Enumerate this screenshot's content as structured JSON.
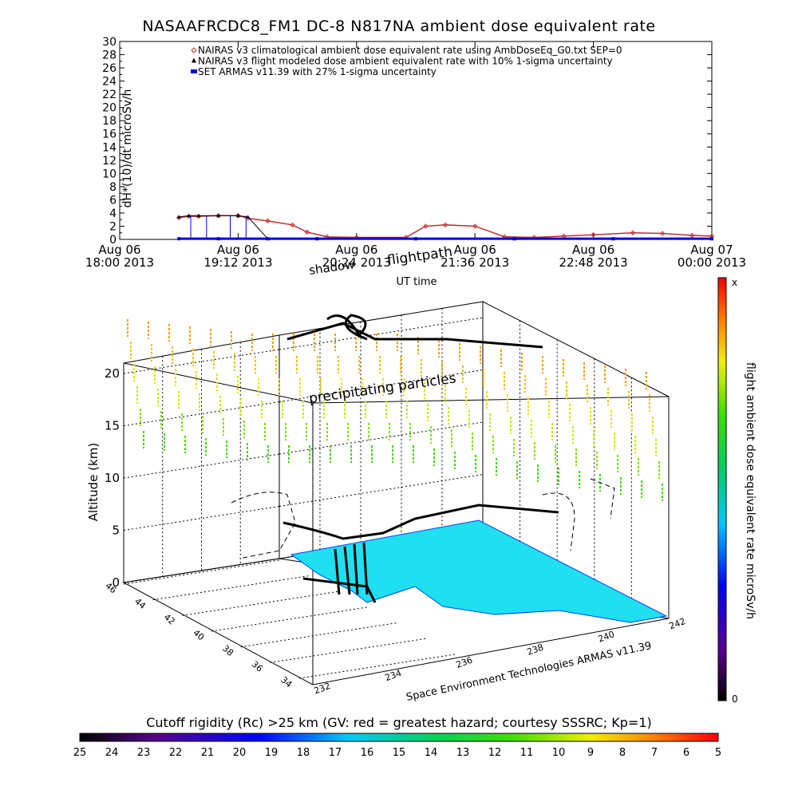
{
  "chart_data": [
    {
      "type": "line",
      "title": "NASAAFRCDC8_FM1 DC-8   N817NA ambient dose equivalent rate",
      "ylabel": "dH*(10)/dt microSv/h",
      "xlabel": "UT time",
      "ylim": [
        0,
        30
      ],
      "yticks": [
        "0",
        "2",
        "4",
        "6",
        "8",
        "10",
        "12",
        "14",
        "16",
        "18",
        "20",
        "22",
        "24",
        "26",
        "28",
        "30"
      ],
      "xticks": [
        {
          "line1": "Aug 06",
          "line2": "18:00 2013"
        },
        {
          "line1": "Aug 06",
          "line2": "19:12 2013"
        },
        {
          "line1": "Aug 06",
          "line2": "20:24 2013"
        },
        {
          "line1": "Aug 06",
          "line2": "21:36 2013"
        },
        {
          "line1": "Aug 06",
          "line2": "22:48 2013"
        },
        {
          "line1": "Aug 07",
          "line2": "00:00 2013"
        }
      ],
      "x_range_hours": [
        0,
        6
      ],
      "legend": [
        {
          "label": "NAIRAS v3 climatological ambient dose equivalent rate using AmbDoseEq_G0.txt SEP=0",
          "color": "#c03030",
          "marker": "diamond"
        },
        {
          "label": "NAIRAS v3 flight modeled dose ambient equivalent rate with 10% 1-sigma uncertainty",
          "color": "#000000",
          "marker": "triangle"
        },
        {
          "label": "SET ARMAS v11.39 with 27% 1-sigma uncertainty",
          "color": "#0000dd",
          "marker": "square"
        }
      ],
      "series": [
        {
          "name": "NAIRAS v3 climatological ambient dose equivalent rate using AmbDoseEq_G0.txt SEP=0",
          "x": [
            0.6,
            0.7,
            0.8,
            1.0,
            1.2,
            1.3,
            1.5,
            1.75,
            1.9,
            2.1,
            2.4,
            2.9,
            3.1,
            3.3,
            3.6,
            3.9,
            4.2,
            4.5,
            4.8,
            5.2,
            5.5,
            5.8,
            6.0
          ],
          "y": [
            3.3,
            3.5,
            3.5,
            3.6,
            3.6,
            3.2,
            2.8,
            2.2,
            1.1,
            0.4,
            0.3,
            0.3,
            2.0,
            2.2,
            2.0,
            0.4,
            0.3,
            0.5,
            0.7,
            1.0,
            0.9,
            0.6,
            0.5
          ]
        },
        {
          "name": "NAIRAS v3 flight modeled dose ambient equivalent rate with 10% 1-sigma uncertainty",
          "x": [
            0.6,
            0.7,
            0.8,
            1.0,
            1.2,
            1.3,
            1.5,
            2.0,
            3.0,
            4.0,
            5.0,
            6.0
          ],
          "y": [
            3.4,
            3.6,
            3.6,
            3.6,
            3.6,
            3.4,
            0.1,
            0.1,
            0.1,
            0.1,
            0.1,
            0.1
          ]
        },
        {
          "name": "SET ARMAS v11.39 with 27% 1-sigma uncertainty",
          "x": [
            0.6,
            1.0,
            1.5,
            2.0,
            3.0,
            4.0,
            5.0,
            6.0
          ],
          "y": [
            0.1,
            0.1,
            0.1,
            0.1,
            0.1,
            0.1,
            0.1,
            0.1
          ]
        }
      ]
    },
    {
      "type": "scatter",
      "title": "",
      "annotations": [
        "shadow",
        "flightpath",
        "precipitating particles"
      ],
      "zlabel": "Altitude (km)",
      "zticks": [
        "0",
        "5",
        "10",
        "15",
        "20"
      ],
      "lat_ticks": [
        "46",
        "44",
        "42",
        "40",
        "38",
        "36",
        "34"
      ],
      "lon_ticks": [
        "232",
        "234",
        "236",
        "238",
        "240",
        "242"
      ],
      "credit": "Space Environment Technologies ARMAS v11.39",
      "colorbar": {
        "label": "flight ambient dose equivalent rate microSv/h",
        "top": "x",
        "bottom": "0"
      }
    },
    {
      "type": "heatmap",
      "title": "Cutoff rigidity (Rc) >25 km (GV: red = greatest hazard; courtesy SSSRC; Kp=1)",
      "ticks": [
        "25",
        "24",
        "23",
        "22",
        "21",
        "20",
        "19",
        "18",
        "17",
        "16",
        "15",
        "14",
        "13",
        "12",
        "11",
        "10",
        "9",
        "8",
        "7",
        "6",
        "5"
      ],
      "range": [
        25,
        5
      ]
    }
  ]
}
